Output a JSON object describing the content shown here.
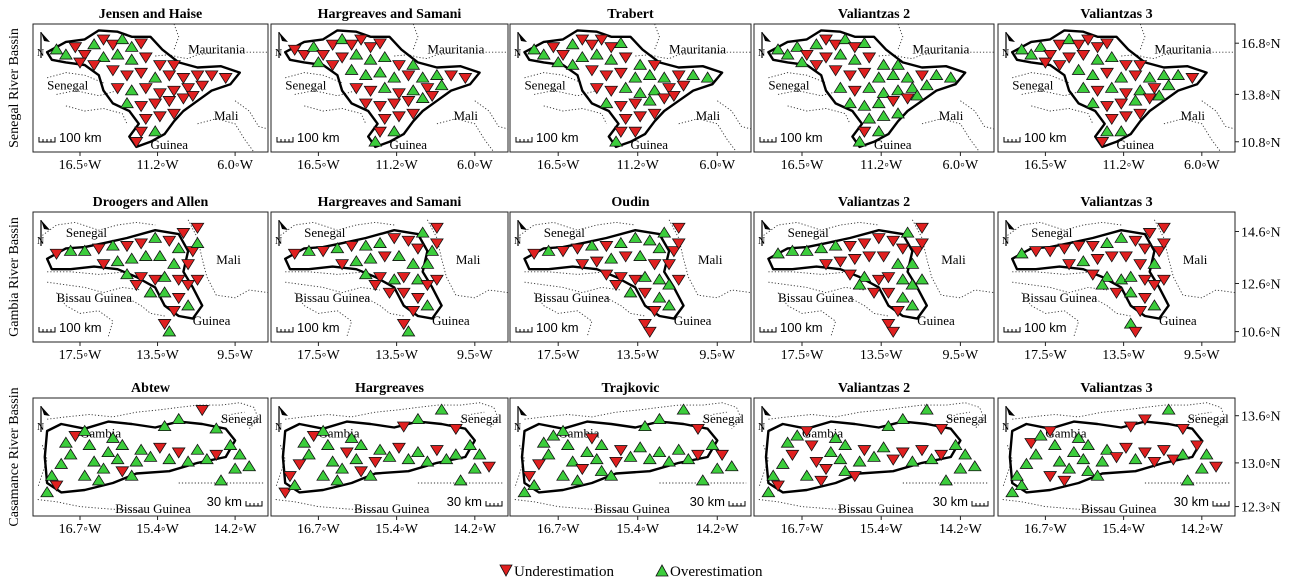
{
  "figure": {
    "legend": {
      "under_label": "Underestimation",
      "over_label": "Overestimation",
      "under_color": "#e02020",
      "over_color": "#3ccd3c"
    },
    "point_colors": {
      "under": "#e02020",
      "over": "#3ccd3c",
      "outline": "#111111"
    },
    "rows": [
      {
        "row_label": "Senegal River Bassin",
        "x_ticks": [
          "16.5◦W",
          "11.2◦W",
          "6.0◦W"
        ],
        "y_ticks": [
          "16.8◦N",
          "13.8◦N",
          "10.8◦N"
        ],
        "scale_bar": "100 km",
        "region_labels": [
          "Mauritania",
          "Senegal",
          "Mali",
          "Guinea"
        ],
        "panels": [
          {
            "title": "Jensen and Haise",
            "under_share": 0.8
          },
          {
            "title": "Hargreaves and Samani",
            "under_share": 0.65
          },
          {
            "title": "Trabert",
            "under_share": 0.5
          },
          {
            "title": "Valiantzas 2",
            "under_share": 0.35
          },
          {
            "title": "Valiantzas 3",
            "under_share": 0.4
          }
        ]
      },
      {
        "row_label": "Gambia River Bassin",
        "x_ticks": [
          "17.5◦W",
          "13.5◦W",
          "9.5◦W"
        ],
        "y_ticks": [
          "14.6◦N",
          "12.6◦N",
          "10.6◦N"
        ],
        "scale_bar": "100 km",
        "region_labels": [
          "Senegal",
          "Mali",
          "Bissau Guinea",
          "Guinea"
        ],
        "panels": [
          {
            "title": "Droogers and Allen",
            "under_share": 0.6
          },
          {
            "title": "Hargreaves and Samani",
            "under_share": 0.6
          },
          {
            "title": "Oudin",
            "under_share": 0.55
          },
          {
            "title": "Valiantzas 2",
            "under_share": 0.55
          },
          {
            "title": "Valiantzas 3",
            "under_share": 0.6
          }
        ]
      },
      {
        "row_label": "Casamance River Bassin",
        "x_ticks": [
          "16.7◦W",
          "15.4◦W",
          "14.2◦W"
        ],
        "y_ticks": [
          "13.6◦N",
          "13.0◦N",
          "12.3◦N"
        ],
        "scale_bar": "30 km",
        "region_labels": [
          "Senegal",
          "Gambia",
          "Bissau Guinea"
        ],
        "panels": [
          {
            "title": "Abtew",
            "under_share": 0.25
          },
          {
            "title": "Hargreaves",
            "under_share": 0.25
          },
          {
            "title": "Trajkovic",
            "under_share": 0.25
          },
          {
            "title": "Valiantzas 2",
            "under_share": 0.35
          },
          {
            "title": "Valiantzas 3",
            "under_share": 0.3
          }
        ]
      }
    ],
    "north_arrow_label": "N"
  }
}
